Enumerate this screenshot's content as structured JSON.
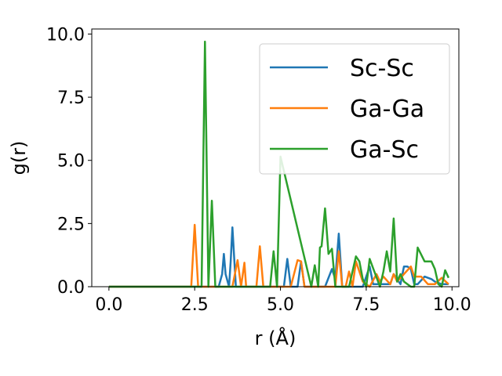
{
  "chart_data": {
    "type": "line",
    "xlabel": "r (Å)",
    "ylabel": "g(r)",
    "xlim": [
      -0.5,
      10.2
    ],
    "ylim": [
      0,
      10.2
    ],
    "xticks": [
      "0.0",
      "2.5",
      "5.0",
      "7.5",
      "10.0"
    ],
    "yticks": [
      "0.0",
      "2.5",
      "5.0",
      "7.5",
      "10.0"
    ],
    "grid": false,
    "legend": "top-right",
    "series": [
      {
        "name": "Sc-Sc",
        "color": "#1f77b4",
        "x": [
          0.0,
          3.2,
          3.3,
          3.35,
          3.4,
          3.5,
          3.55,
          3.6,
          3.7,
          4.9,
          5.1,
          5.2,
          5.3,
          5.5,
          5.6,
          5.7,
          6.3,
          6.5,
          6.6,
          6.7,
          6.8,
          7.4,
          7.6,
          7.7,
          8.2,
          8.3,
          8.5,
          8.6,
          8.7,
          8.8,
          8.9,
          9.0,
          9.2,
          9.4,
          9.5,
          9.7,
          9.9
        ],
        "y": [
          0.0,
          0.0,
          0.5,
          1.3,
          0.5,
          0.0,
          1.0,
          2.35,
          0.0,
          0.0,
          0.0,
          1.1,
          0.0,
          0.0,
          1.0,
          0.0,
          0.0,
          0.7,
          0.3,
          2.1,
          0.0,
          0.0,
          0.8,
          0.1,
          0.1,
          0.5,
          0.1,
          0.8,
          0.8,
          0.7,
          0.1,
          0.1,
          0.4,
          0.3,
          0.2,
          0.1,
          0.1
        ]
      },
      {
        "name": "Ga-Ga",
        "color": "#ff7f0e",
        "x": [
          0.0,
          2.4,
          2.5,
          2.6,
          3.6,
          3.75,
          3.85,
          3.95,
          4.0,
          4.1,
          4.3,
          4.4,
          4.5,
          5.3,
          5.5,
          5.6,
          5.7,
          6.6,
          6.7,
          6.8,
          6.9,
          7.0,
          7.1,
          7.2,
          7.4,
          7.6,
          7.8,
          7.9,
          8.0,
          8.2,
          8.3,
          8.4,
          8.6,
          8.8,
          8.9,
          9.1,
          9.3,
          9.5,
          9.7,
          9.9
        ],
        "y": [
          0.0,
          0.0,
          2.45,
          0.0,
          0.0,
          1.05,
          0.0,
          0.95,
          0.0,
          0.0,
          0.0,
          1.6,
          0.0,
          0.0,
          1.05,
          1.0,
          0.0,
          0.0,
          1.4,
          0.0,
          0.0,
          0.6,
          0.0,
          1.0,
          0.2,
          0.0,
          0.5,
          0.2,
          0.4,
          0.1,
          0.5,
          0.2,
          0.5,
          0.8,
          0.4,
          0.4,
          0.1,
          0.1,
          0.35,
          0.1
        ]
      },
      {
        "name": "Ga-Sc",
        "color": "#2ca02c",
        "x": [
          0.0,
          2.7,
          2.8,
          2.9,
          3.0,
          3.1,
          4.5,
          4.7,
          4.8,
          4.9,
          5.0,
          5.9,
          6.0,
          6.1,
          6.15,
          6.2,
          6.3,
          6.4,
          6.5,
          6.6,
          7.0,
          7.2,
          7.3,
          7.4,
          7.5,
          7.6,
          7.9,
          8.0,
          8.1,
          8.2,
          8.3,
          8.4,
          8.5,
          8.6,
          8.8,
          8.9,
          9.0,
          9.2,
          9.4,
          9.5,
          9.6,
          9.7,
          9.8,
          9.9
        ],
        "y": [
          0.0,
          0.0,
          9.7,
          0.0,
          3.4,
          0.0,
          0.0,
          0.0,
          1.4,
          0.0,
          5.15,
          0.0,
          0.85,
          0.0,
          1.55,
          1.6,
          3.1,
          1.3,
          1.5,
          0.0,
          0.0,
          1.2,
          1.0,
          0.3,
          0.0,
          1.1,
          0.0,
          0.6,
          1.4,
          0.6,
          2.7,
          0.2,
          0.5,
          0.2,
          0.0,
          0.0,
          1.55,
          1.0,
          1.0,
          0.7,
          0.1,
          0.0,
          0.65,
          0.35
        ]
      }
    ]
  }
}
